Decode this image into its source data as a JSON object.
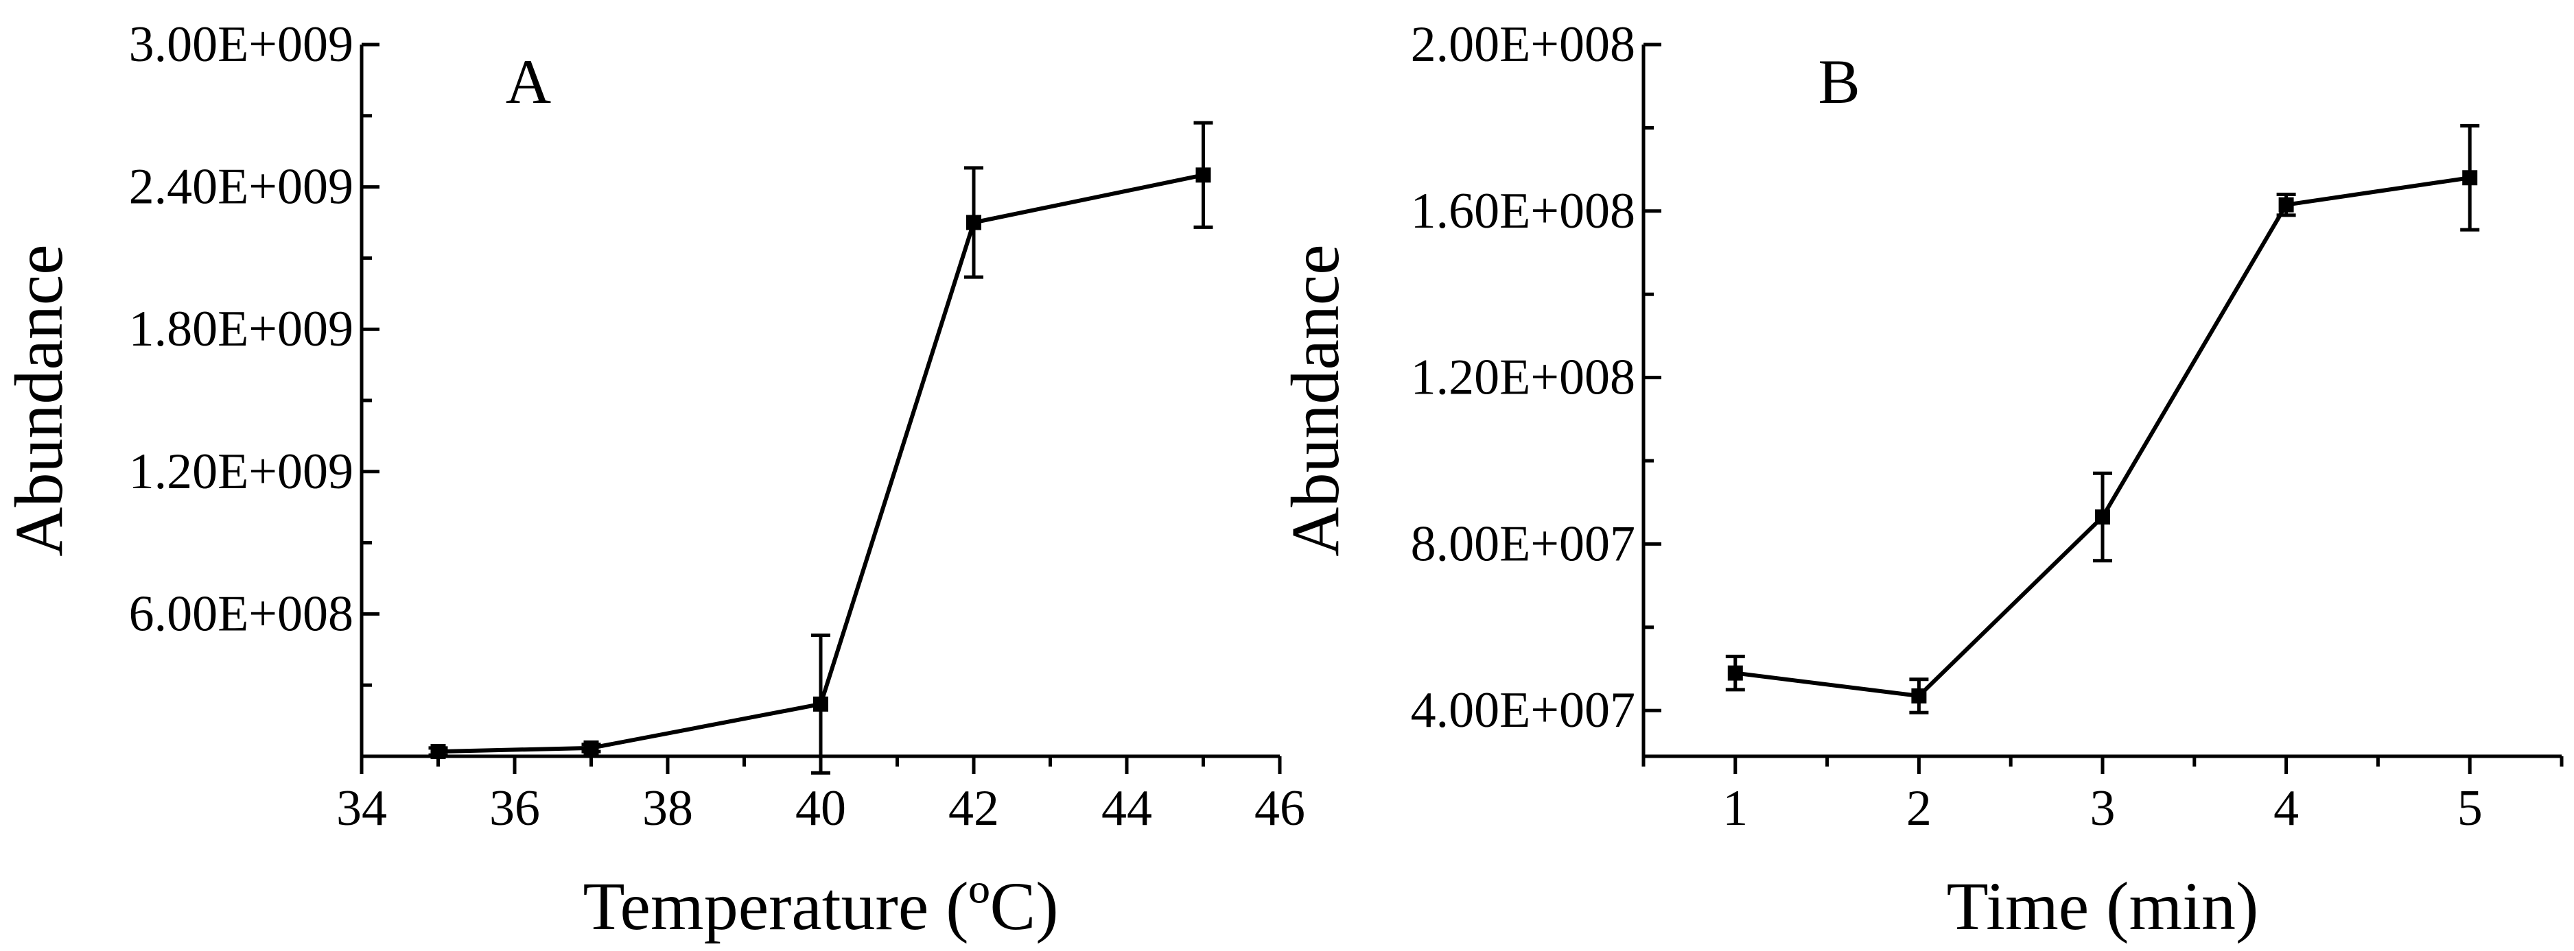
{
  "chart_data": [
    {
      "type": "line",
      "panel_label": "A",
      "xlabel": "Temperature (ºC)",
      "ylabel": "Abundance",
      "xlim": [
        34,
        46
      ],
      "ylim": [
        0,
        3000000000
      ],
      "xticks": [
        34,
        36,
        38,
        40,
        42,
        44,
        46
      ],
      "xtick_labels": [
        "34",
        "36",
        "38",
        "40",
        "42",
        "44",
        "46"
      ],
      "yticks": [
        600000000,
        1200000000,
        1800000000,
        2400000000,
        3000000000
      ],
      "ytick_labels": [
        "6.00E+008",
        "1.20E+009",
        "1.80E+009",
        "2.40E+009",
        "3.00E+009"
      ],
      "grid": false,
      "series": [
        {
          "name": "Abundance",
          "x": [
            35,
            37,
            40,
            42,
            45
          ],
          "y": [
            20000000,
            35000000,
            220000000,
            2250000000,
            2450000000
          ],
          "error": [
            15000000,
            15000000,
            290000000,
            230000000,
            220000000
          ]
        }
      ]
    },
    {
      "type": "line",
      "panel_label": "B",
      "xlabel": "Time (min)",
      "ylabel": "Abundance",
      "xlim": [
        0.5,
        5.5
      ],
      "ylim": [
        29000000,
        200000000
      ],
      "xticks": [
        1,
        2,
        3,
        4,
        5
      ],
      "xtick_labels": [
        "1",
        "2",
        "3",
        "4",
        "5"
      ],
      "yticks": [
        40000000,
        80000000,
        120000000,
        160000000,
        200000000
      ],
      "ytick_labels": [
        "4.00E+007",
        "8.00E+007",
        "1.20E+008",
        "1.60E+008",
        "2.00E+008"
      ],
      "grid": false,
      "series": [
        {
          "name": "Abundance",
          "x": [
            1,
            2,
            3,
            4,
            5
          ],
          "y": [
            49000000,
            43500000,
            86500000,
            161500000,
            168000000
          ],
          "error": [
            4000000,
            4000000,
            10500000,
            2500000,
            12500000
          ]
        }
      ]
    }
  ]
}
